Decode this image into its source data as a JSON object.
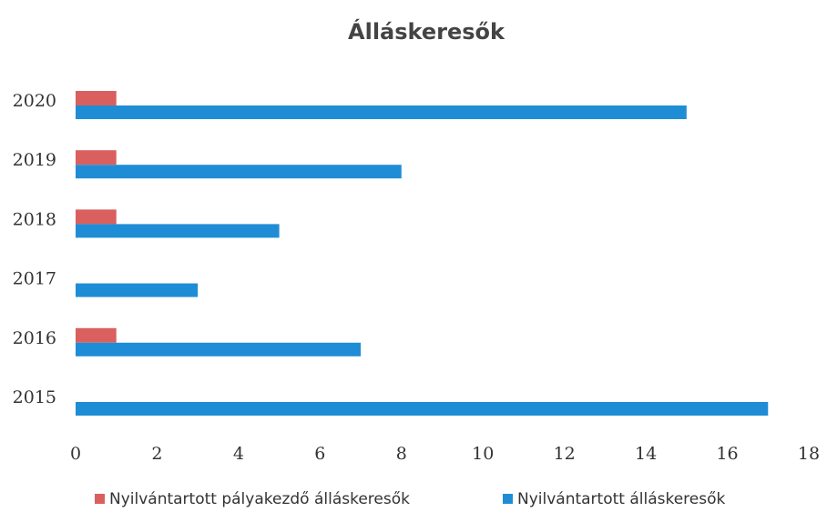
{
  "chart_data": {
    "type": "barh",
    "title": "Álláskeresők",
    "categories": [
      "2015",
      "2016",
      "2017",
      "2018",
      "2019",
      "2020"
    ],
    "series": [
      {
        "name": "Nyilvántartott pályakezdő álláskeresők",
        "color": "#d9605f",
        "values": [
          0,
          1,
          0,
          1,
          1,
          1
        ]
      },
      {
        "name": "Nyilvántartott álláskeresők",
        "color": "#1f8dd6",
        "values": [
          17,
          7,
          3,
          5,
          8,
          15
        ]
      }
    ],
    "xlim": [
      0,
      18
    ],
    "xticks": [
      0,
      2,
      4,
      6,
      8,
      10,
      12,
      14,
      16,
      18
    ],
    "grid": false,
    "legend": "bottom"
  }
}
